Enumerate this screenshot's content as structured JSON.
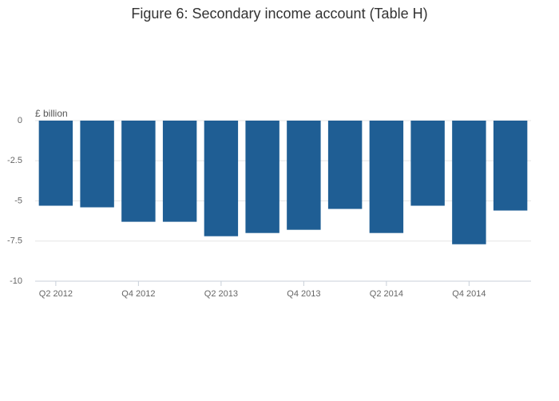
{
  "chart_data": {
    "type": "bar",
    "title": "Figure 6: Secondary income account (Table H)",
    "y_label": "£ billion",
    "categories": [
      "Q2 2012",
      null,
      "Q4 2012",
      null,
      "Q2 2013",
      null,
      "Q4 2013",
      null,
      "Q2 2014",
      null,
      "Q4 2014",
      null
    ],
    "values": [
      -5.3,
      -5.4,
      -6.3,
      -6.3,
      -7.2,
      -7.0,
      -6.8,
      -5.5,
      -7.0,
      -5.3,
      -7.7,
      -5.6
    ],
    "color": "#1f5e94",
    "ylim": [
      -10,
      0
    ],
    "yticks": [
      0,
      -2.5,
      -5,
      -7.5,
      -10
    ],
    "grid": true
  }
}
